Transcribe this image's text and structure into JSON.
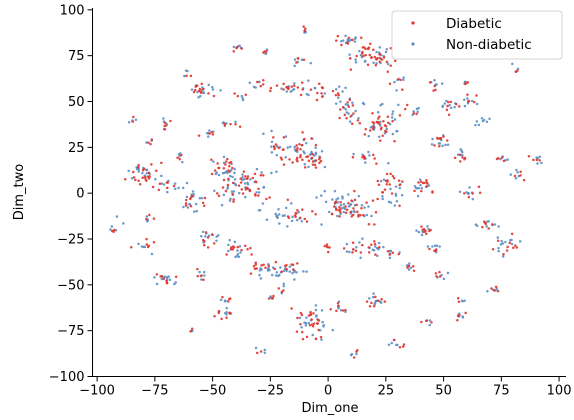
{
  "chart_data": {
    "type": "scatter",
    "title": "",
    "xlabel": "Dim_one",
    "ylabel": "Dim_two",
    "xlim": [
      -102,
      103
    ],
    "ylim": [
      -100,
      101
    ],
    "xticks": [
      -100,
      -75,
      -50,
      -25,
      0,
      25,
      50,
      75,
      100
    ],
    "yticks": [
      -100,
      -75,
      -50,
      -25,
      0,
      25,
      50,
      75,
      100
    ],
    "tick_labels_x": [
      "−100",
      "−75",
      "−50",
      "−25",
      "0",
      "25",
      "50",
      "75",
      "100"
    ],
    "tick_labels_y": [
      "−100",
      "−75",
      "−50",
      "−25",
      "0",
      "25",
      "50",
      "75",
      "100"
    ],
    "grid": false,
    "legend_position": "top-right",
    "point_encoding": "Each cluster is given as [center_x, center_y, spread_x, spread_y, point_count]; individual points are scattered inside each cluster.",
    "series": [
      {
        "name": "Diabetic",
        "color": "#e0332b",
        "clusters": [
          [
            20,
            74,
            8,
            6,
            34
          ],
          [
            8,
            83,
            5,
            3,
            8
          ],
          [
            -40,
            79,
            3,
            2,
            4
          ],
          [
            -27,
            77,
            2,
            2,
            3
          ],
          [
            -17,
            57,
            7,
            3,
            14
          ],
          [
            -5,
            55,
            4,
            5,
            8
          ],
          [
            -55,
            56,
            6,
            3,
            12
          ],
          [
            -12,
            72,
            3,
            3,
            4
          ],
          [
            -70,
            38,
            3,
            3,
            5
          ],
          [
            -64,
            20,
            2,
            3,
            3
          ],
          [
            -80,
            10,
            6,
            7,
            22
          ],
          [
            -70,
            4,
            3,
            3,
            6
          ],
          [
            -52,
            32,
            3,
            2,
            4
          ],
          [
            -42,
            38,
            3,
            2,
            5
          ],
          [
            -35,
            5,
            10,
            10,
            40
          ],
          [
            -45,
            14,
            6,
            5,
            14
          ],
          [
            -55,
            -5,
            5,
            5,
            10
          ],
          [
            -15,
            24,
            9,
            8,
            34
          ],
          [
            -5,
            18,
            5,
            5,
            12
          ],
          [
            10,
            -8,
            9,
            7,
            36
          ],
          [
            -12,
            -10,
            7,
            5,
            14
          ],
          [
            0,
            -30,
            3,
            4,
            6
          ],
          [
            10,
            45,
            5,
            6,
            12
          ],
          [
            22,
            38,
            7,
            9,
            30
          ],
          [
            35,
            45,
            3,
            3,
            4
          ],
          [
            15,
            20,
            5,
            3,
            8
          ],
          [
            27,
            5,
            5,
            10,
            20
          ],
          [
            40,
            4,
            4,
            5,
            12
          ],
          [
            48,
            28,
            4,
            4,
            8
          ],
          [
            58,
            20,
            3,
            3,
            6
          ],
          [
            53,
            48,
            4,
            4,
            7
          ],
          [
            62,
            50,
            4,
            3,
            5
          ],
          [
            46,
            58,
            3,
            3,
            4
          ],
          [
            75,
            18,
            3,
            3,
            4
          ],
          [
            83,
            10,
            3,
            3,
            4
          ],
          [
            90,
            18,
            3,
            3,
            4
          ],
          [
            62,
            0,
            4,
            3,
            5
          ],
          [
            70,
            -18,
            5,
            3,
            6
          ],
          [
            78,
            -28,
            6,
            5,
            10
          ],
          [
            42,
            -20,
            4,
            3,
            8
          ],
          [
            46,
            -30,
            3,
            2,
            4
          ],
          [
            -80,
            -28,
            4,
            4,
            6
          ],
          [
            -78,
            -14,
            2,
            3,
            3
          ],
          [
            -52,
            -25,
            4,
            5,
            8
          ],
          [
            -40,
            -30,
            6,
            5,
            12
          ],
          [
            -30,
            -40,
            5,
            3,
            10
          ],
          [
            -20,
            -40,
            6,
            3,
            10
          ],
          [
            -70,
            -47,
            5,
            3,
            8
          ],
          [
            -55,
            -45,
            3,
            3,
            4
          ],
          [
            -45,
            -65,
            4,
            3,
            8
          ],
          [
            -45,
            -58,
            3,
            2,
            4
          ],
          [
            -8,
            -70,
            6,
            8,
            26
          ],
          [
            5,
            -62,
            3,
            4,
            6
          ],
          [
            20,
            -58,
            4,
            4,
            8
          ],
          [
            20,
            -30,
            4,
            4,
            8
          ],
          [
            10,
            -30,
            4,
            4,
            6
          ],
          [
            28,
            -33,
            3,
            3,
            4
          ],
          [
            30,
            -82,
            3,
            2,
            4
          ],
          [
            12,
            -88,
            2,
            2,
            3
          ],
          [
            -30,
            -87,
            2,
            2,
            2
          ],
          [
            -25,
            -57,
            2,
            2,
            3
          ],
          [
            -20,
            -52,
            2,
            2,
            3
          ],
          [
            42,
            -70,
            3,
            2,
            3
          ],
          [
            58,
            -68,
            3,
            3,
            4
          ],
          [
            72,
            -52,
            3,
            2,
            4
          ],
          [
            58,
            -58,
            2,
            2,
            2
          ],
          [
            48,
            -45,
            3,
            3,
            4
          ],
          [
            36,
            -40,
            3,
            3,
            4
          ],
          [
            -10,
            90,
            2,
            2,
            3
          ],
          [
            4,
            55,
            3,
            3,
            4
          ],
          [
            -38,
            53,
            2,
            2,
            3
          ],
          [
            -77,
            28,
            2,
            2,
            3
          ],
          [
            -93,
            -20,
            2,
            2,
            3
          ],
          [
            -85,
            40,
            2,
            2,
            2
          ],
          [
            -62,
            65,
            2,
            2,
            2
          ],
          [
            60,
            60,
            2,
            2,
            3
          ],
          [
            80,
            68,
            2,
            2,
            2
          ],
          [
            30,
            60,
            3,
            3,
            4
          ],
          [
            -30,
            60,
            3,
            3,
            4
          ],
          [
            -60,
            -75,
            2,
            2,
            2
          ]
        ]
      },
      {
        "name": "Non-diabetic",
        "color": "#5b8ec4",
        "clusters": [
          [
            20,
            74,
            9,
            7,
            22
          ],
          [
            8,
            83,
            6,
            3,
            12
          ],
          [
            -40,
            79,
            3,
            2,
            4
          ],
          [
            -27,
            77,
            2,
            2,
            3
          ],
          [
            -12,
            72,
            4,
            3,
            5
          ],
          [
            -17,
            56,
            7,
            3,
            12
          ],
          [
            -55,
            56,
            7,
            4,
            14
          ],
          [
            -5,
            56,
            4,
            5,
            6
          ],
          [
            -70,
            38,
            3,
            3,
            4
          ],
          [
            -64,
            20,
            2,
            3,
            4
          ],
          [
            -80,
            10,
            6,
            7,
            16
          ],
          [
            -70,
            4,
            3,
            3,
            5
          ],
          [
            -52,
            32,
            3,
            2,
            5
          ],
          [
            -42,
            38,
            3,
            2,
            4
          ],
          [
            -35,
            5,
            11,
            10,
            40
          ],
          [
            -45,
            12,
            6,
            6,
            14
          ],
          [
            -58,
            -5,
            5,
            5,
            14
          ],
          [
            -15,
            24,
            10,
            8,
            28
          ],
          [
            -5,
            18,
            5,
            5,
            10
          ],
          [
            8,
            -8,
            10,
            7,
            40
          ],
          [
            -20,
            -12,
            8,
            6,
            22
          ],
          [
            10,
            45,
            5,
            6,
            16
          ],
          [
            22,
            38,
            7,
            9,
            24
          ],
          [
            38,
            45,
            3,
            3,
            5
          ],
          [
            15,
            20,
            5,
            3,
            6
          ],
          [
            27,
            5,
            5,
            10,
            16
          ],
          [
            40,
            4,
            4,
            5,
            10
          ],
          [
            48,
            28,
            4,
            4,
            10
          ],
          [
            58,
            20,
            3,
            3,
            6
          ],
          [
            53,
            48,
            4,
            4,
            8
          ],
          [
            62,
            50,
            4,
            3,
            6
          ],
          [
            66,
            38,
            3,
            2,
            5
          ],
          [
            46,
            60,
            3,
            3,
            5
          ],
          [
            75,
            18,
            3,
            3,
            4
          ],
          [
            83,
            10,
            3,
            3,
            5
          ],
          [
            90,
            18,
            3,
            3,
            5
          ],
          [
            62,
            0,
            5,
            3,
            8
          ],
          [
            70,
            -18,
            5,
            3,
            8
          ],
          [
            78,
            -28,
            6,
            5,
            12
          ],
          [
            42,
            -20,
            4,
            3,
            8
          ],
          [
            46,
            -30,
            3,
            2,
            6
          ],
          [
            -80,
            -28,
            4,
            4,
            5
          ],
          [
            -78,
            -14,
            2,
            3,
            4
          ],
          [
            -52,
            -25,
            4,
            5,
            10
          ],
          [
            -40,
            -30,
            6,
            5,
            12
          ],
          [
            -25,
            -43,
            8,
            4,
            22
          ],
          [
            -15,
            -42,
            5,
            3,
            10
          ],
          [
            -70,
            -47,
            6,
            3,
            12
          ],
          [
            -55,
            -45,
            3,
            3,
            5
          ],
          [
            -45,
            -65,
            4,
            3,
            6
          ],
          [
            -45,
            -58,
            3,
            2,
            4
          ],
          [
            -5,
            -70,
            6,
            9,
            22
          ],
          [
            5,
            -62,
            3,
            4,
            6
          ],
          [
            20,
            -58,
            4,
            4,
            10
          ],
          [
            20,
            -30,
            4,
            4,
            10
          ],
          [
            10,
            -30,
            4,
            4,
            8
          ],
          [
            28,
            -33,
            3,
            3,
            5
          ],
          [
            30,
            -82,
            3,
            2,
            5
          ],
          [
            12,
            -88,
            2,
            2,
            3
          ],
          [
            -30,
            -87,
            2,
            2,
            3
          ],
          [
            -25,
            -57,
            2,
            2,
            3
          ],
          [
            -20,
            -52,
            2,
            2,
            3
          ],
          [
            42,
            -70,
            3,
            2,
            4
          ],
          [
            58,
            -68,
            3,
            3,
            4
          ],
          [
            72,
            -52,
            3,
            2,
            4
          ],
          [
            58,
            -58,
            2,
            2,
            3
          ],
          [
            48,
            -45,
            3,
            3,
            4
          ],
          [
            36,
            -40,
            3,
            3,
            5
          ],
          [
            -10,
            90,
            2,
            2,
            3
          ],
          [
            4,
            55,
            3,
            3,
            5
          ],
          [
            -38,
            53,
            2,
            2,
            3
          ],
          [
            -77,
            28,
            2,
            2,
            3
          ],
          [
            -93,
            -20,
            2,
            2,
            3
          ],
          [
            -85,
            40,
            2,
            2,
            3
          ],
          [
            -62,
            65,
            2,
            2,
            3
          ],
          [
            60,
            60,
            2,
            2,
            3
          ],
          [
            80,
            68,
            2,
            2,
            3
          ],
          [
            30,
            60,
            3,
            3,
            5
          ],
          [
            -30,
            60,
            3,
            3,
            5
          ],
          [
            -60,
            -75,
            2,
            2,
            3
          ],
          [
            -65,
            5,
            3,
            3,
            4
          ],
          [
            66,
            40,
            2,
            2,
            3
          ],
          [
            -90,
            -15,
            2,
            2,
            2
          ]
        ]
      }
    ]
  }
}
